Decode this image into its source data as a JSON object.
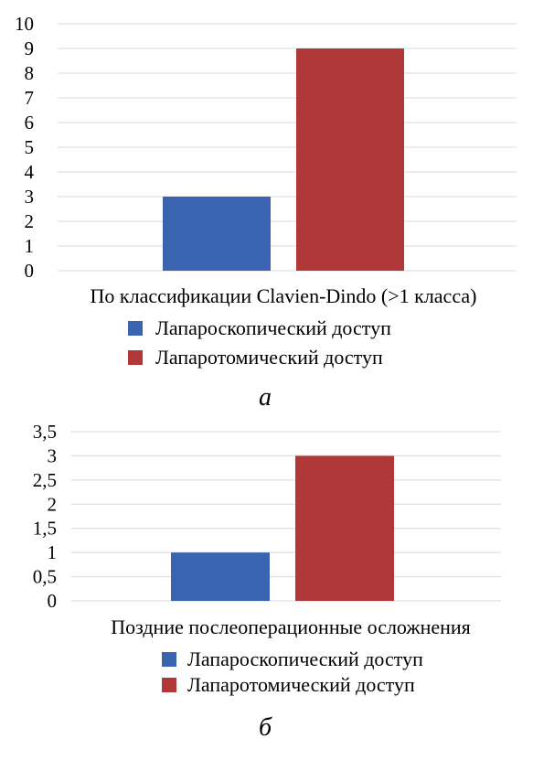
{
  "chart_data": [
    {
      "type": "bar",
      "panel_label": "а",
      "categories": [
        "По классификации Clavien-Dindo (>1 класса)"
      ],
      "series": [
        {
          "name": "Лапароскопический доступ",
          "values": [
            3
          ],
          "color": "#3a64b0"
        },
        {
          "name": "Лапаротомический доступ",
          "values": [
            9
          ],
          "color": "#b03838"
        }
      ],
      "ylim": [
        0,
        10
      ],
      "yticks": [
        "0",
        "1",
        "2",
        "3",
        "4",
        "5",
        "6",
        "7",
        "8",
        "9",
        "10"
      ],
      "ytick_values": [
        0,
        1,
        2,
        3,
        4,
        5,
        6,
        7,
        8,
        9,
        10
      ],
      "grid": true,
      "legend_position": "bottom"
    },
    {
      "type": "bar",
      "panel_label": "б",
      "categories": [
        "Поздние послеоперационные осложнения"
      ],
      "series": [
        {
          "name": "Лапароскопический доступ",
          "values": [
            1
          ],
          "color": "#3a64b0"
        },
        {
          "name": "Лапаротомический доступ",
          "values": [
            3
          ],
          "color": "#b03838"
        }
      ],
      "ylim": [
        0,
        3.5
      ],
      "yticks": [
        "0",
        "0,5",
        "1",
        "1,5",
        "2",
        "2,5",
        "3",
        "3,5"
      ],
      "ytick_values": [
        0,
        0.5,
        1,
        1.5,
        2,
        2.5,
        3,
        3.5
      ],
      "grid": true,
      "legend_position": "bottom"
    }
  ]
}
